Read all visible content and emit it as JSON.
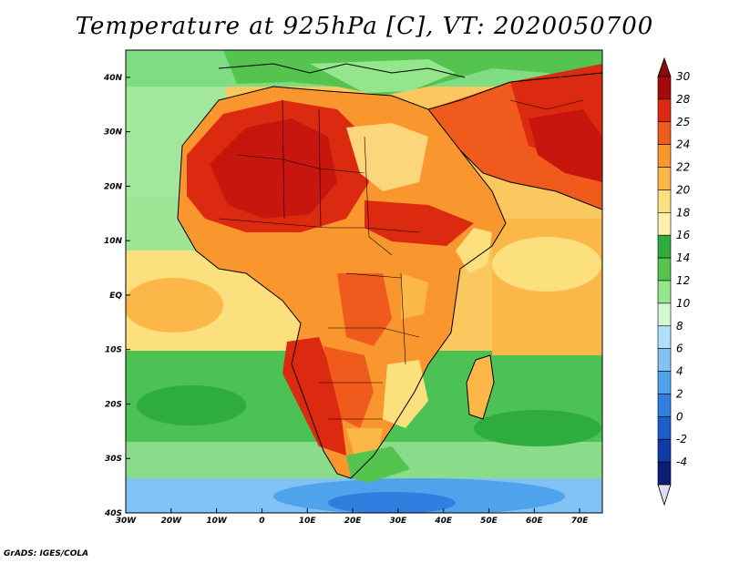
{
  "title": "Temperature at 925hPa [C], VT: 2020050700",
  "footer": "GrADS: IGES/COLA",
  "map": {
    "variable": "Temperature at 925hPa",
    "units": "C",
    "valid_time": "2020050700",
    "lon_range": [
      -30,
      75
    ],
    "lat_range": [
      -40,
      45
    ]
  },
  "axes": {
    "lat_labels": [
      {
        "lat": 40,
        "label": "40N"
      },
      {
        "lat": 30,
        "label": "30N"
      },
      {
        "lat": 20,
        "label": "20N"
      },
      {
        "lat": 10,
        "label": "10N"
      },
      {
        "lat": 0,
        "label": "EQ"
      },
      {
        "lat": -10,
        "label": "10S"
      },
      {
        "lat": -20,
        "label": "20S"
      },
      {
        "lat": -30,
        "label": "30S"
      },
      {
        "lat": -40,
        "label": "40S"
      }
    ],
    "lon_labels": [
      {
        "lon": -30,
        "label": "30W"
      },
      {
        "lon": -20,
        "label": "20W"
      },
      {
        "lon": -10,
        "label": "10W"
      },
      {
        "lon": 0,
        "label": "0"
      },
      {
        "lon": 10,
        "label": "10E"
      },
      {
        "lon": 20,
        "label": "20E"
      },
      {
        "lon": 30,
        "label": "30E"
      },
      {
        "lon": 40,
        "label": "40E"
      },
      {
        "lon": 50,
        "label": "50E"
      },
      {
        "lon": 60,
        "label": "60E"
      },
      {
        "lon": 70,
        "label": "70E"
      }
    ]
  },
  "colorbar": {
    "bins": [
      {
        "label": "30",
        "color": "#a50a0a"
      },
      {
        "label": "28",
        "color": "#dc2a10"
      },
      {
        "label": "25",
        "color": "#f05a1c"
      },
      {
        "label": "24",
        "color": "#fa962e"
      },
      {
        "label": "22",
        "color": "#fbb848"
      },
      {
        "label": "20",
        "color": "#fde07e"
      },
      {
        "label": "18",
        "color": "#fdf0ad"
      },
      {
        "label": "16",
        "color": "#2ead3c"
      },
      {
        "label": "14",
        "color": "#54c44f"
      },
      {
        "label": "12",
        "color": "#94e58c"
      },
      {
        "label": "10",
        "color": "#d4f8d2"
      },
      {
        "label": "8",
        "color": "#b0e0fa"
      },
      {
        "label": "6",
        "color": "#80c2f4"
      },
      {
        "label": "4",
        "color": "#4fa2ec"
      },
      {
        "label": "2",
        "color": "#2f7ee0"
      },
      {
        "label": "0",
        "color": "#1e5ecc"
      },
      {
        "label": "-2",
        "color": "#103aa8"
      },
      {
        "label": "-4",
        "color": "#0a1e78"
      }
    ],
    "top_extension_color": "#8c0a0a",
    "bottom_extension_color": "#e0dcf6"
  }
}
